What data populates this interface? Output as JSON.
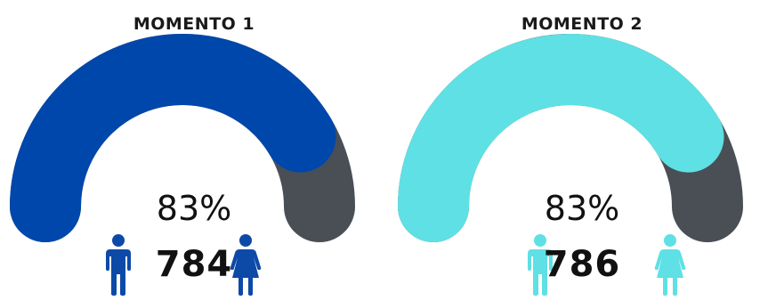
{
  "chart_data": [
    {
      "type": "gauge",
      "title": "MOMENTO 1",
      "value_percent": 83,
      "value_label": "83%",
      "count": 784,
      "count_label": "784",
      "colors": {
        "fill": "#0047ab",
        "remainder": "#4a4f56",
        "icons": "#0d4aa8"
      },
      "icons": [
        "male-person-icon",
        "female-person-icon"
      ]
    },
    {
      "type": "gauge",
      "title": "MOMENTO 2",
      "value_percent": 83,
      "value_label": "83%",
      "count": 786,
      "count_label": "786",
      "colors": {
        "fill": "#5fe0e4",
        "remainder": "#4a4f56",
        "icons": "#5fe0e4"
      },
      "icons": [
        "male-person-icon",
        "female-person-icon"
      ]
    }
  ]
}
